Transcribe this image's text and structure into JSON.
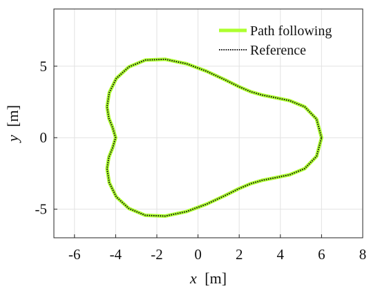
{
  "chart_data": {
    "type": "line",
    "title": "",
    "xlabel": {
      "var": "x",
      "unit": "[m]"
    },
    "ylabel": {
      "var": "y",
      "unit": "[m]"
    },
    "xlim": [
      -7,
      8
    ],
    "ylim": [
      -7,
      9
    ],
    "xticks": [
      -6,
      -4,
      -2,
      0,
      2,
      4,
      6,
      8
    ],
    "xtick_labels": [
      "-6",
      "-4",
      "-2",
      "0",
      "2",
      "4",
      "6",
      "8"
    ],
    "yticks": [
      -5,
      0,
      5
    ],
    "ytick_labels": [
      "-5",
      "0",
      "5"
    ],
    "grid": true,
    "legend_position": "top-right",
    "series": [
      {
        "name": "Path following",
        "color": "#adff2f",
        "style": "solid",
        "points": [
          [
            6.0,
            0.0
          ],
          [
            5.76,
            1.3
          ],
          [
            5.18,
            2.16
          ],
          [
            4.45,
            2.59
          ],
          [
            3.76,
            2.8
          ],
          [
            3.12,
            2.98
          ],
          [
            2.57,
            3.21
          ],
          [
            1.98,
            3.57
          ],
          [
            1.28,
            4.07
          ],
          [
            0.41,
            4.65
          ],
          [
            -0.56,
            5.17
          ],
          [
            -1.59,
            5.48
          ],
          [
            -2.56,
            5.43
          ],
          [
            -3.36,
            4.95
          ],
          [
            -3.97,
            4.14
          ],
          [
            -4.31,
            3.15
          ],
          [
            -4.42,
            2.16
          ],
          [
            -4.33,
            1.36
          ],
          [
            -4.15,
            0.72
          ],
          [
            -4.0,
            0.0
          ],
          [
            -4.15,
            -0.72
          ],
          [
            -4.33,
            -1.36
          ],
          [
            -4.42,
            -2.16
          ],
          [
            -4.31,
            -3.15
          ],
          [
            -3.97,
            -4.14
          ],
          [
            -3.36,
            -4.95
          ],
          [
            -2.56,
            -5.43
          ],
          [
            -1.59,
            -5.48
          ],
          [
            -0.56,
            -5.17
          ],
          [
            0.41,
            -4.65
          ],
          [
            1.28,
            -4.07
          ],
          [
            1.98,
            -3.57
          ],
          [
            2.57,
            -3.21
          ],
          [
            3.12,
            -2.98
          ],
          [
            3.76,
            -2.8
          ],
          [
            4.45,
            -2.59
          ],
          [
            5.18,
            -2.16
          ],
          [
            5.76,
            -1.3
          ],
          [
            6.0,
            0.0
          ]
        ]
      },
      {
        "name": "Reference",
        "color": "#111111",
        "style": "dotted",
        "points": [
          [
            6.0,
            0.0
          ],
          [
            5.76,
            1.3
          ],
          [
            5.18,
            2.16
          ],
          [
            4.45,
            2.59
          ],
          [
            3.76,
            2.8
          ],
          [
            3.12,
            2.98
          ],
          [
            2.57,
            3.21
          ],
          [
            1.98,
            3.57
          ],
          [
            1.28,
            4.07
          ],
          [
            0.41,
            4.65
          ],
          [
            -0.56,
            5.17
          ],
          [
            -1.59,
            5.48
          ],
          [
            -2.56,
            5.43
          ],
          [
            -3.36,
            4.95
          ],
          [
            -3.97,
            4.14
          ],
          [
            -4.31,
            3.15
          ],
          [
            -4.42,
            2.16
          ],
          [
            -4.33,
            1.36
          ],
          [
            -4.15,
            0.72
          ],
          [
            -4.0,
            0.0
          ],
          [
            -4.15,
            -0.72
          ],
          [
            -4.33,
            -1.36
          ],
          [
            -4.42,
            -2.16
          ],
          [
            -4.31,
            -3.15
          ],
          [
            -3.97,
            -4.14
          ],
          [
            -3.36,
            -4.95
          ],
          [
            -2.56,
            -5.43
          ],
          [
            -1.59,
            -5.48
          ],
          [
            -0.56,
            -5.17
          ],
          [
            0.41,
            -4.65
          ],
          [
            1.28,
            -4.07
          ],
          [
            1.98,
            -3.57
          ],
          [
            2.57,
            -3.21
          ],
          [
            3.12,
            -2.98
          ],
          [
            3.76,
            -2.8
          ],
          [
            4.45,
            -2.59
          ],
          [
            5.18,
            -2.16
          ],
          [
            5.76,
            -1.3
          ],
          [
            6.0,
            0.0
          ]
        ]
      }
    ]
  }
}
